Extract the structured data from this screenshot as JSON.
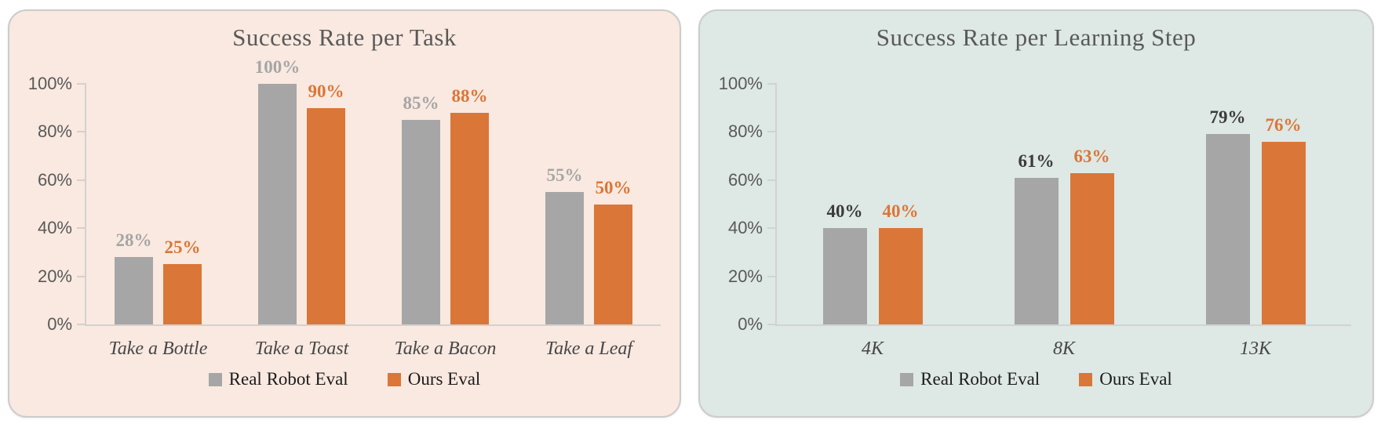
{
  "page": {
    "background": "#ffffff"
  },
  "chart_data": [
    {
      "type": "bar",
      "title": "Success Rate per Task",
      "panel_bg": "#f9e9e0",
      "title_color": "#595959",
      "axis_color": "#d4d1cd",
      "tick_color": "#595959",
      "category_color": "#474747",
      "legend_text_color": "#1c1c1c",
      "categories": [
        "Take a Bottle",
        "Take a Toast",
        "Take a Bacon",
        "Take a Leaf"
      ],
      "series": [
        {
          "name": "Real Robot Eval",
          "color": "#a6a6a6",
          "label_color": "#a6a6a6",
          "values": [
            28,
            100,
            85,
            55
          ]
        },
        {
          "name": "Ours Eval",
          "color": "#da7638",
          "label_color": "#da7638",
          "values": [
            25,
            90,
            88,
            50
          ]
        }
      ],
      "value_suffix": "%",
      "ylim": [
        0,
        100
      ],
      "yticks": [
        "0%",
        "20%",
        "40%",
        "60%",
        "80%",
        "100%"
      ],
      "grid": false,
      "legend_position": "bottom"
    },
    {
      "type": "bar",
      "title": "Success Rate per Learning Step",
      "panel_bg": "#dee8e5",
      "title_color": "#595959",
      "axis_color": "#d2d3d0",
      "tick_color": "#595959",
      "category_color": "#474747",
      "legend_text_color": "#1c1c1c",
      "categories": [
        "4K",
        "8K",
        "13K"
      ],
      "series": [
        {
          "name": "Real Robot Eval",
          "color": "#a6a6a6",
          "label_color": "#3b3b3b",
          "values": [
            40,
            61,
            79
          ]
        },
        {
          "name": "Ours Eval",
          "color": "#da7638",
          "label_color": "#da7638",
          "values": [
            40,
            63,
            76
          ]
        }
      ],
      "value_suffix": "%",
      "ylim": [
        0,
        100
      ],
      "yticks": [
        "0%",
        "20%",
        "40%",
        "60%",
        "80%",
        "100%"
      ],
      "grid": false,
      "legend_position": "bottom"
    }
  ]
}
